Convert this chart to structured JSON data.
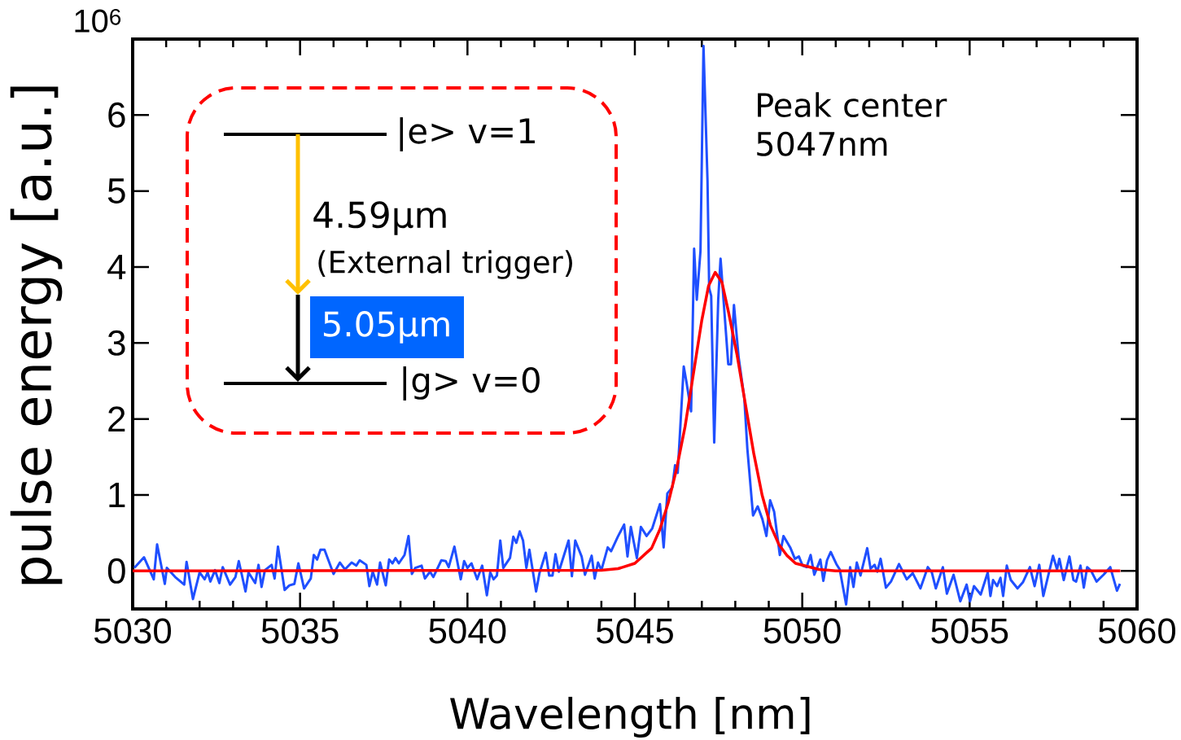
{
  "chart_data": {
    "type": "line",
    "xlabel": "Wavelength [nm]",
    "ylabel": "pulse energy [a.u.]",
    "xlim": [
      5030,
      5060
    ],
    "xticks": [
      5030,
      5035,
      5040,
      5045,
      5050,
      5055,
      5060
    ],
    "ylim": [
      -0.5,
      7
    ],
    "yticks": [
      0,
      1,
      2,
      3,
      4,
      5,
      6
    ],
    "annotations": [
      "Peak center 5047nm",
      "|e> v=1",
      "4.59μm",
      "(External trigger)",
      "5.05μm",
      "|g> v=0",
      "10$^{6}$"
    ],
    "series": [
      {
        "color": "#1f4fff",
        "x": [
          5030.05,
          5030.34,
          5030.63,
          5030.73,
          5030.96,
          5031.02,
          5031.27,
          5031.54,
          5031.61,
          5031.8,
          5032.0,
          5032.15,
          5032.24,
          5032.32,
          5032.46,
          5032.59,
          5032.69,
          5032.91,
          5033.07,
          5033.17,
          5033.37,
          5033.46,
          5033.66,
          5033.76,
          5033.85,
          5033.95,
          5034.15,
          5034.24,
          5034.34,
          5034.54,
          5034.68,
          5034.83,
          5034.95,
          5035.12,
          5035.32,
          5035.41,
          5035.51,
          5035.61,
          5035.73,
          5036.0,
          5036.19,
          5036.34,
          5036.54,
          5036.68,
          5036.78,
          5036.98,
          5037.07,
          5037.17,
          5037.3,
          5037.39,
          5037.56,
          5037.66,
          5037.76,
          5037.85,
          5037.95,
          5038.12,
          5038.24,
          5038.34,
          5038.44,
          5038.63,
          5038.73,
          5038.88,
          5038.98,
          5039.22,
          5039.35,
          5039.44,
          5039.61,
          5039.8,
          5039.9,
          5040.0,
          5040.12,
          5040.29,
          5040.44,
          5040.58,
          5040.68,
          5040.78,
          5040.88,
          5040.98,
          5041.07,
          5041.27,
          5041.37,
          5041.46,
          5041.56,
          5041.66,
          5041.76,
          5041.85,
          5042.05,
          5042.15,
          5042.34,
          5042.44,
          5042.54,
          5042.63,
          5042.73,
          5043.02,
          5043.12,
          5043.22,
          5043.41,
          5043.51,
          5043.71,
          5043.8,
          5043.9,
          5044.0,
          5044.19,
          5044.29,
          5044.49,
          5044.68,
          5044.78,
          5044.88,
          5045.06,
          5045.18,
          5045.35,
          5045.52,
          5045.75,
          5045.86,
          5045.97,
          5046.12,
          5046.2,
          5046.28,
          5046.46,
          5046.54,
          5046.68,
          5046.77,
          5046.85,
          5046.96,
          5047.05,
          5047.17,
          5047.22,
          5047.28,
          5047.37,
          5047.49,
          5047.56,
          5047.68,
          5047.79,
          5047.87,
          5047.96,
          5048.1,
          5048.27,
          5048.36,
          5048.53,
          5048.67,
          5048.81,
          5048.93,
          5049.04,
          5049.16,
          5049.33,
          5049.44,
          5049.64,
          5049.78,
          5049.9,
          5050.01,
          5050.13,
          5050.25,
          5050.36,
          5050.54,
          5050.63,
          5050.74,
          5050.85,
          5051.02,
          5051.12,
          5051.31,
          5051.43,
          5051.53,
          5051.63,
          5051.74,
          5051.94,
          5052.04,
          5052.16,
          5052.24,
          5052.34,
          5052.5,
          5052.65,
          5052.89,
          5053.12,
          5053.3,
          5053.53,
          5053.75,
          5053.87,
          5053.99,
          5054.2,
          5054.32,
          5054.52,
          5054.72,
          5054.91,
          5055.01,
          5055.13,
          5055.33,
          5055.54,
          5055.62,
          5055.7,
          5055.82,
          5055.92,
          5056.0,
          5056.11,
          5056.23,
          5056.43,
          5056.59,
          5056.8,
          5056.94,
          5057.08,
          5057.2,
          5057.37,
          5057.49,
          5057.61,
          5057.68,
          5057.81,
          5057.98,
          5058.1,
          5058.18,
          5058.31,
          5058.41,
          5058.51,
          5058.63,
          5058.79,
          5059.0,
          5059.2,
          5059.4,
          5059.49
        ],
        "values": [
          0.04,
          0.18,
          -0.11,
          0.35,
          -0.17,
          0.04,
          -0.08,
          -0.18,
          0.12,
          -0.37,
          -0.02,
          -0.11,
          -0.02,
          -0.14,
          0.01,
          -0.16,
          0.05,
          -0.18,
          -0.08,
          0.13,
          -0.27,
          -0.02,
          -0.16,
          0.08,
          -0.21,
          0.01,
          0.08,
          -0.1,
          0.32,
          -0.25,
          -0.19,
          -0.17,
          0.1,
          -0.23,
          -0.1,
          0.21,
          0.15,
          0.28,
          0.28,
          -0.04,
          0.11,
          0.02,
          0.11,
          0.07,
          0.14,
          0.08,
          -0.2,
          -0.01,
          -0.18,
          0.11,
          -0.19,
          0.15,
          0.1,
          0.17,
          0.1,
          0.21,
          0.46,
          -0.04,
          0.04,
          0.07,
          -0.1,
          -0.01,
          -0.08,
          0.14,
          0.13,
          0.05,
          0.32,
          -0.11,
          0.13,
          0.04,
          0.1,
          -0.11,
          0.07,
          -0.32,
          -0.02,
          -0.11,
          -0.06,
          0.4,
          0.04,
          0.17,
          0.45,
          0.37,
          0.52,
          0.4,
          0.04,
          0.28,
          -0.27,
          -0.03,
          0.24,
          -0.06,
          -0.06,
          0.22,
          -0.01,
          0.4,
          -0.07,
          0.4,
          0.19,
          -0.05,
          0.2,
          -0.1,
          0.11,
          0.01,
          0.31,
          0.26,
          0.45,
          0.61,
          0.19,
          0.58,
          0.17,
          0.58,
          0.46,
          0.56,
          0.88,
          0.31,
          1.02,
          1.1,
          1.39,
          1.29,
          2.69,
          2.49,
          2.1,
          4.24,
          3.57,
          4.21,
          6.91,
          5.14,
          3.72,
          3.62,
          1.69,
          3.57,
          4.11,
          3.38,
          2.72,
          2.72,
          3.5,
          2.81,
          2.27,
          1.61,
          0.73,
          0.85,
          0.68,
          0.46,
          0.93,
          0.78,
          0.21,
          0.46,
          0.31,
          0.16,
          0.19,
          0.07,
          0.05,
          0.21,
          -0.05,
          0.15,
          -0.13,
          0.14,
          0.25,
          0.09,
          0.02,
          -0.44,
          0.05,
          -0.21,
          0.11,
          -0.06,
          0.3,
          0.03,
          0.08,
          -0.01,
          0.16,
          -0.22,
          -0.14,
          0.09,
          -0.11,
          -0.03,
          -0.23,
          0.05,
          -0.02,
          -0.23,
          0.05,
          -0.3,
          -0.05,
          -0.4,
          -0.18,
          -0.4,
          -0.2,
          -0.31,
          -0.02,
          -0.33,
          -0.12,
          -0.2,
          -0.09,
          -0.33,
          0.07,
          -0.12,
          -0.23,
          -0.15,
          0.05,
          -0.2,
          0.08,
          -0.33,
          -0.02,
          0.2,
          0.02,
          0.16,
          -0.12,
          0.19,
          -0.12,
          -0.14,
          0.07,
          -0.22,
          0.05,
          0.0,
          -0.14,
          -0.05,
          0.05,
          -0.26,
          -0.17
        ]
      },
      {
        "color": "#ff0000",
        "x": [
          5030,
          5044,
          5044.5,
          5045,
          5045.5,
          5045.75,
          5046,
          5046.25,
          5046.5,
          5046.75,
          5047,
          5047.2,
          5047.4,
          5047.6,
          5047.8,
          5048.05,
          5048.3,
          5048.55,
          5048.8,
          5049.05,
          5049.3,
          5049.55,
          5049.8,
          5050.5,
          5051,
          5059.5
        ],
        "values": [
          0,
          0.01,
          0.03,
          0.1,
          0.3,
          0.55,
          0.9,
          1.35,
          1.9,
          2.6,
          3.3,
          3.75,
          3.93,
          3.8,
          3.4,
          2.85,
          2.2,
          1.55,
          1.0,
          0.6,
          0.35,
          0.2,
          0.1,
          0.02,
          0,
          0
        ]
      }
    ]
  }
}
